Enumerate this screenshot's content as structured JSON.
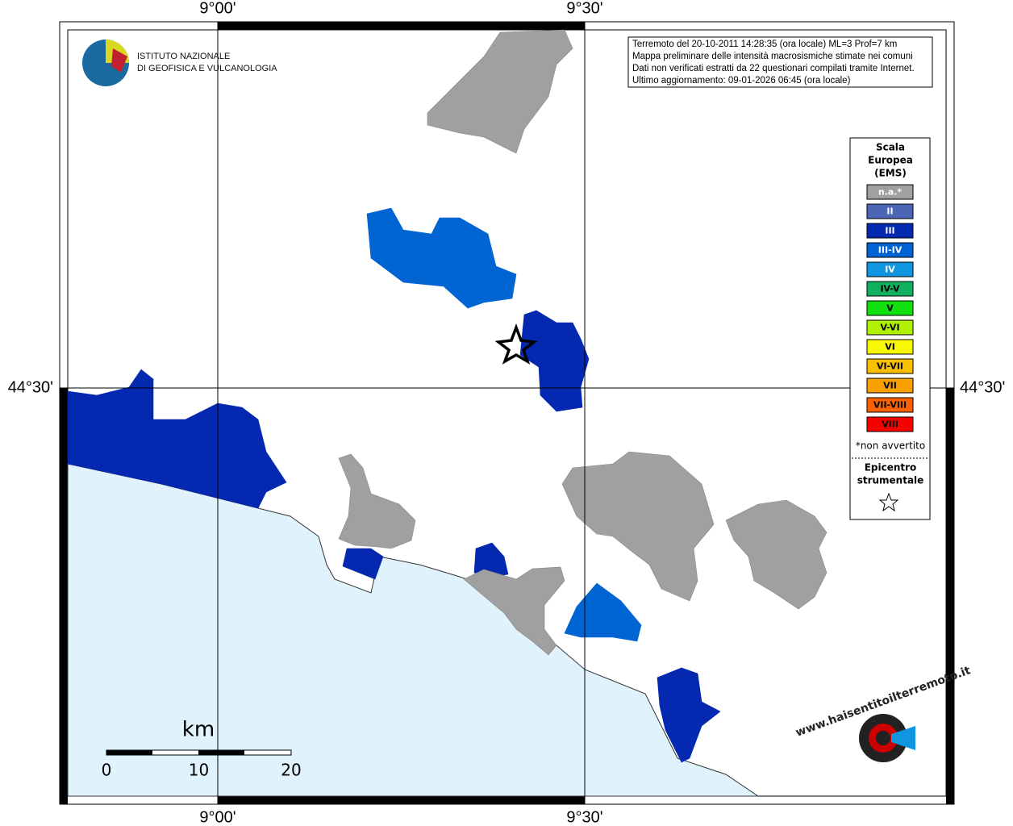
{
  "map": {
    "coordinates": {
      "lon_left": "9°00'",
      "lon_right": "9°30'",
      "lat": "44°30'"
    },
    "institute": [
      "ISTITUTO NAZIONALE",
      "DI GEOFISICA E VULCANOLOGIA"
    ],
    "info_box": [
      "Terremoto del 20-10-2011 14:28:35 (ora locale) ML=3 Prof=7 km",
      "Mappa preliminare delle intensità macrosismiche stimate nei comuni",
      "Dati non verificati estratti da 22 questionari compilati tramite Internet.",
      "Ultimo aggiornamento: 09-01-2026 06:45 (ora locale)"
    ],
    "legend": {
      "title": [
        "Scala",
        "Europea",
        "(EMS)"
      ],
      "items": [
        {
          "label": "n.a.*",
          "color": "#a0a0a0"
        },
        {
          "label": "II",
          "color": "#4a66b4"
        },
        {
          "label": "III",
          "color": "#0528b0"
        },
        {
          "label": "III-IV",
          "color": "#0064d2"
        },
        {
          "label": "IV",
          "color": "#1096e0"
        },
        {
          "label": "IV-V",
          "color": "#10b060"
        },
        {
          "label": "V",
          "color": "#10e010"
        },
        {
          "label": "V-VI",
          "color": "#b0f000"
        },
        {
          "label": "VI",
          "color": "#f8f800"
        },
        {
          "label": "VI-VII",
          "color": "#f8c000"
        },
        {
          "label": "VII",
          "color": "#f8a000"
        },
        {
          "label": "VII-VIII",
          "color": "#f86000"
        },
        {
          "label": "VIII",
          "color": "#f80000"
        }
      ],
      "footnote": "*non avvertito",
      "epicenter": [
        "Epicentro",
        "strumentale"
      ]
    },
    "scale_bar": {
      "unit": "km",
      "labels": [
        "0",
        "10",
        "20"
      ]
    },
    "site_logo": "www.haisentitoilterremoto.it"
  }
}
